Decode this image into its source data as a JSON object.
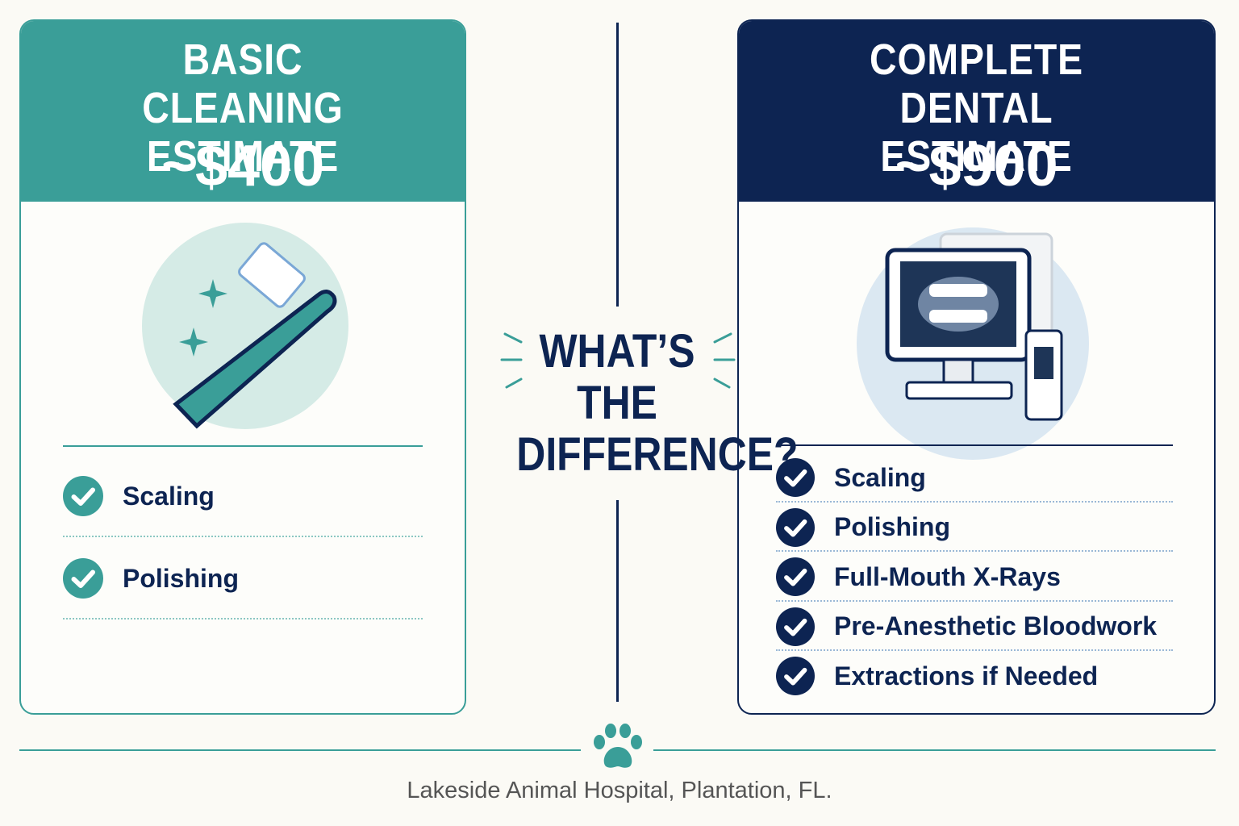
{
  "left_card": {
    "title": "BASIC CLEANING ESTIMATE",
    "price": "~$400",
    "items": [
      "Scaling",
      "Polishing"
    ]
  },
  "center": {
    "heading": "WHAT’S THE DIFFERENCE?"
  },
  "right_card": {
    "title": "COMPLETE DENTAL ESTIMATE",
    "price": "~$900",
    "items": [
      "Scaling",
      "Polishing",
      "Full-Mouth X-Rays",
      "Pre-Anesthetic Bloodwork",
      "Extractions if Needed"
    ]
  },
  "footer": {
    "text": "Lakeside Animal Hospital, Plantation, FL."
  }
}
